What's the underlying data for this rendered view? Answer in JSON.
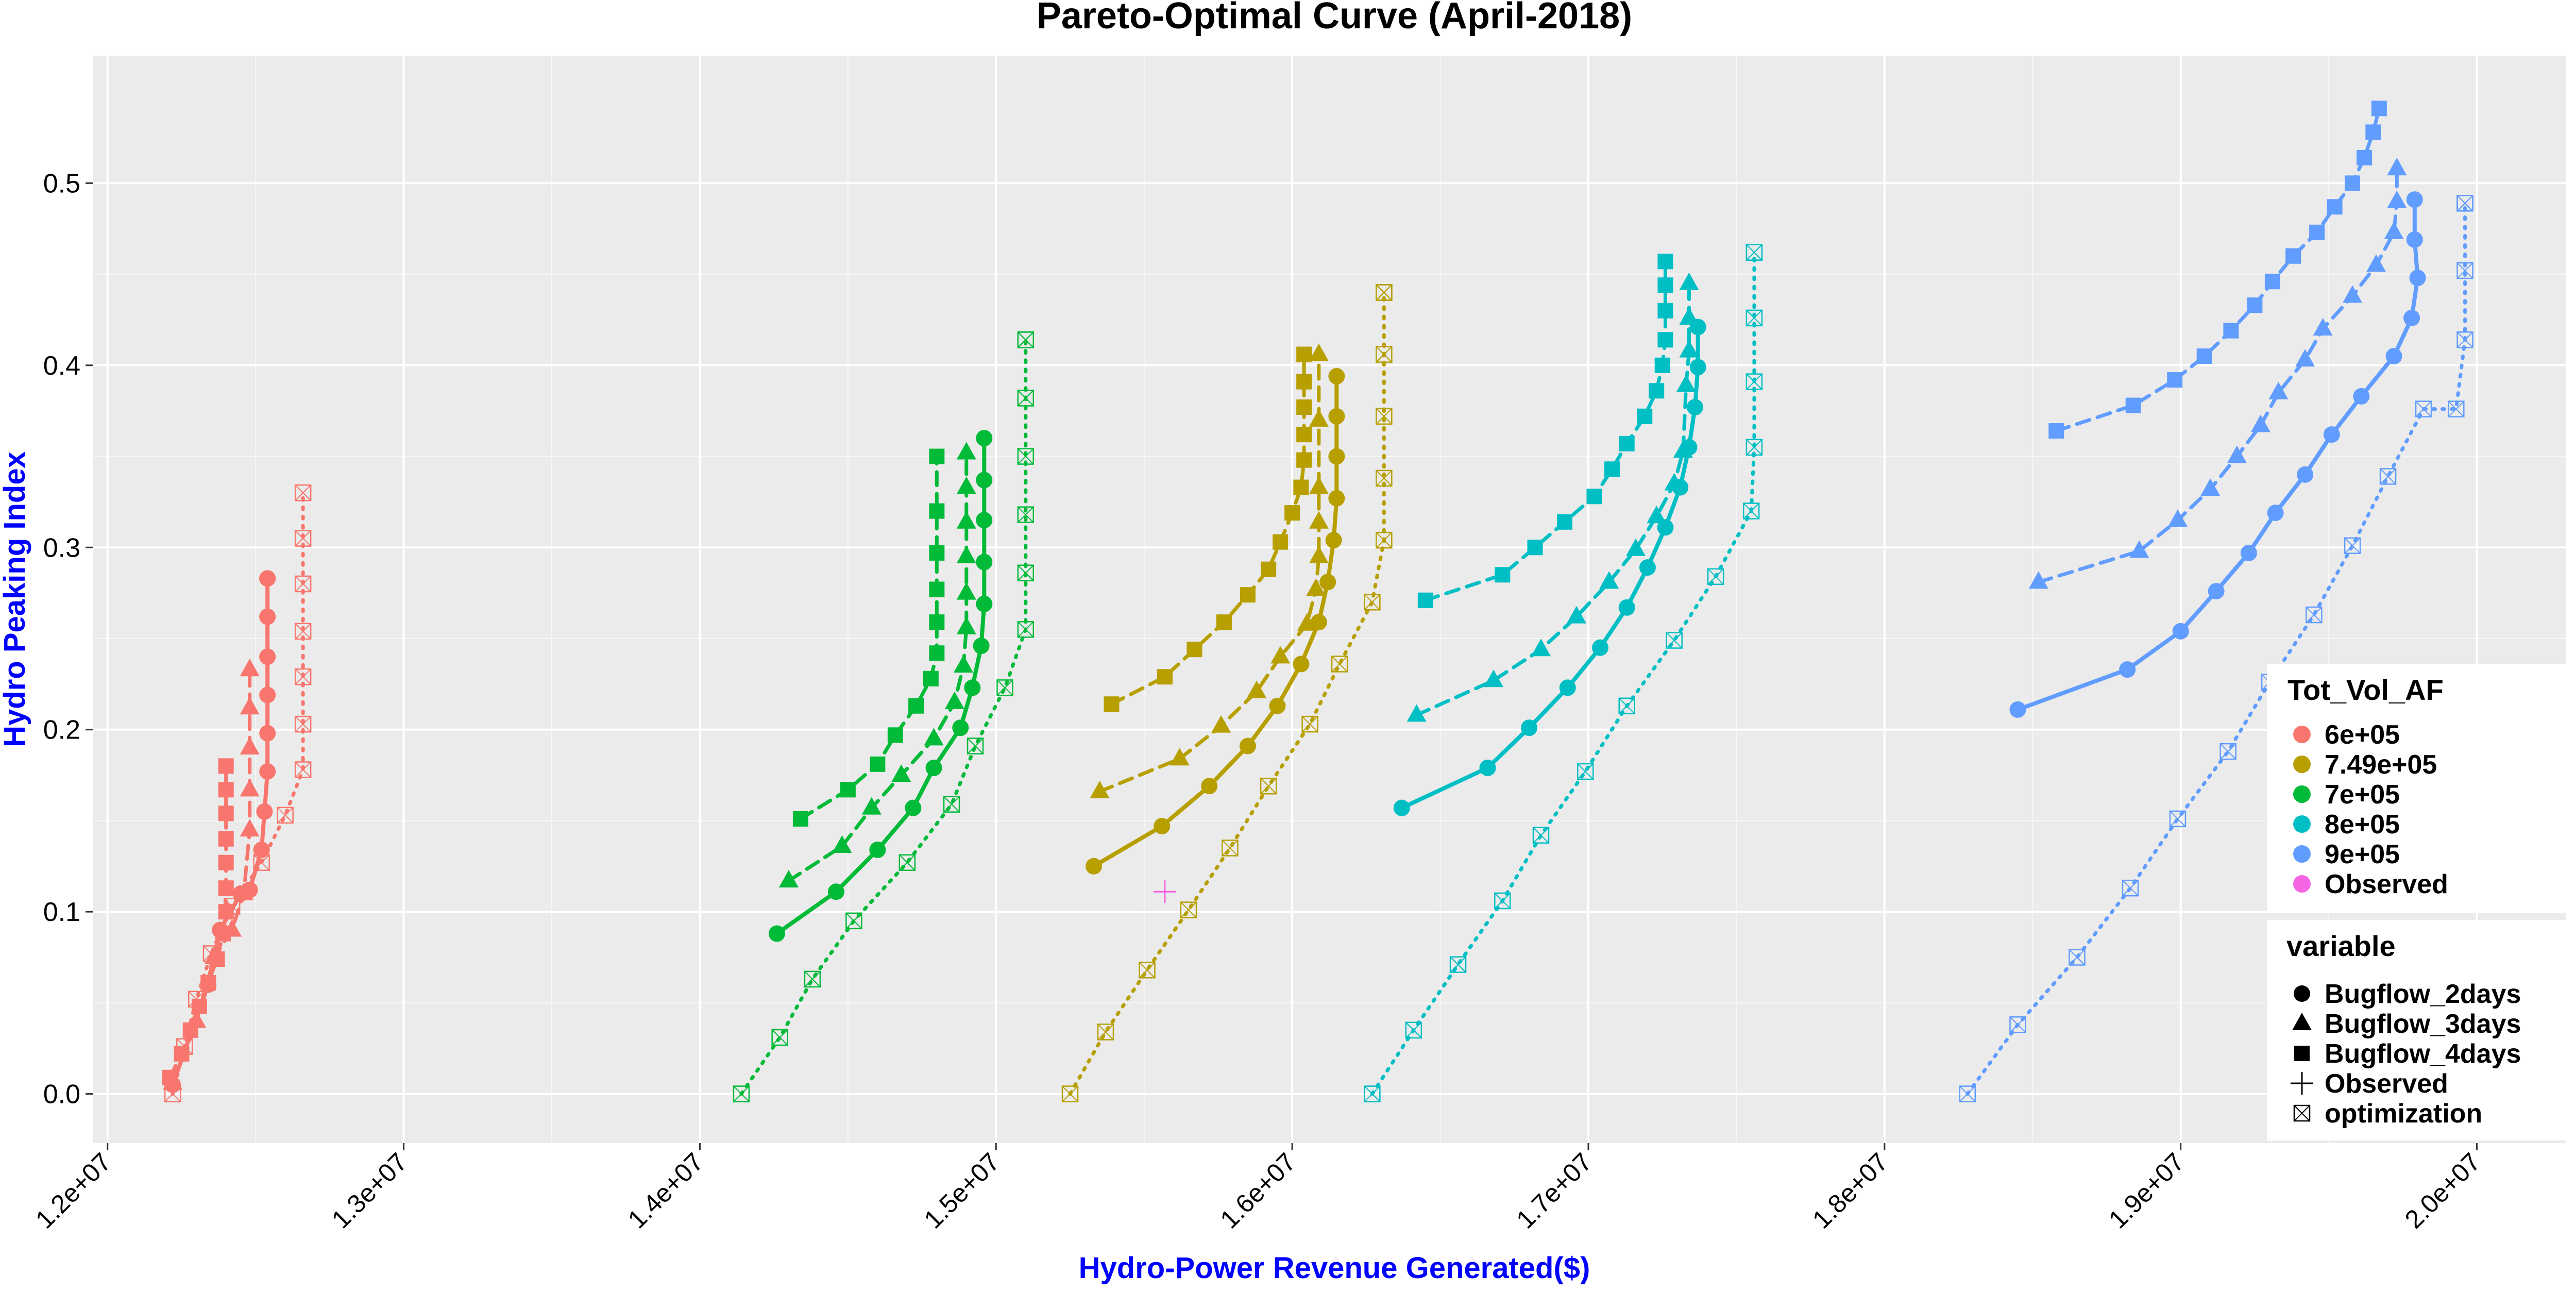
{
  "chart_data": {
    "type": "line",
    "title": "Pareto-Optimal Curve (April-2018)",
    "xlabel": "Hydro-Power Revenue Generated($)",
    "ylabel": "Hydro Peaking Index",
    "xlim": [
      11950000,
      20300000
    ],
    "ylim": [
      -0.027,
      0.57
    ],
    "x_ticks": [
      12000000,
      13000000,
      14000000,
      15000000,
      16000000,
      17000000,
      18000000,
      19000000,
      20000000
    ],
    "x_tick_labels": [
      "1.2e+07",
      "1.3e+07",
      "1.4e+07",
      "1.5e+07",
      "1.6e+07",
      "1.7e+07",
      "1.8e+07",
      "1.9e+07",
      "2.0e+07"
    ],
    "y_ticks": [
      0.0,
      0.1,
      0.2,
      0.3,
      0.4,
      0.5
    ],
    "y_tick_labels": [
      "0.0",
      "0.1",
      "0.2",
      "0.3",
      "0.4",
      "0.5"
    ],
    "grid": true,
    "legend_placement": "right",
    "legend_color": {
      "title": "Tot_Vol_AF",
      "entries": [
        {
          "label": "6e+05",
          "color": "#F8766D"
        },
        {
          "label": "7.49e+05",
          "color": "#B79F00"
        },
        {
          "label": "7e+05",
          "color": "#00BA38"
        },
        {
          "label": "8e+05",
          "color": "#00BFC4"
        },
        {
          "label": "9e+05",
          "color": "#619CFF"
        },
        {
          "label": "Observed",
          "color": "#F564E3"
        }
      ]
    },
    "legend_shape": {
      "title": "variable",
      "entries": [
        {
          "label": "Bugflow_2days",
          "shape": "circle"
        },
        {
          "label": "Bugflow_3days",
          "shape": "triangle"
        },
        {
          "label": "Bugflow_4days",
          "shape": "square"
        },
        {
          "label": "Observed",
          "shape": "plus"
        },
        {
          "label": "optimization",
          "shape": "boxx"
        }
      ]
    },
    "series": [
      {
        "color": "#F8766D",
        "shape": "circle",
        "linetype": "solid",
        "x": [
          12220000,
          12340000,
          12380000,
          12450000,
          12480000,
          12520000,
          12530000,
          12540000,
          12540000,
          12540000,
          12540000,
          12540000,
          12540000,
          12540000,
          12540000
        ],
        "y": [
          0.005,
          0.06,
          0.09,
          0.11,
          0.112,
          0.134,
          0.155,
          0.177,
          0.198,
          0.219,
          0.24,
          0.262,
          0.283,
          0.283,
          0.283
        ]
      },
      {
        "color": "#F8766D",
        "shape": "triangle",
        "linetype": "dashed",
        "x": [
          12220000,
          12300000,
          12360000,
          12420000,
          12460000,
          12480000,
          12480000,
          12480000,
          12480000,
          12480000,
          12480000
        ],
        "y": [
          0.006,
          0.04,
          0.075,
          0.09,
          0.11,
          0.145,
          0.167,
          0.19,
          0.212,
          0.233,
          0.233
        ]
      },
      {
        "color": "#F8766D",
        "shape": "square",
        "linetype": "dashed",
        "x": [
          12210000,
          12250000,
          12280000,
          12310000,
          12340000,
          12370000,
          12390000,
          12400000,
          12400000,
          12400000,
          12400000,
          12400000,
          12400000,
          12400000
        ],
        "y": [
          0.009,
          0.022,
          0.035,
          0.048,
          0.061,
          0.074,
          0.088,
          0.1,
          0.113,
          0.127,
          0.14,
          0.154,
          0.167,
          0.18
        ]
      },
      {
        "color": "#F8766D",
        "shape": "boxx",
        "linetype": "dotted",
        "x": [
          12220000,
          12260000,
          12300000,
          12350000,
          12420000,
          12520000,
          12600000,
          12660000,
          12660000,
          12660000,
          12660000,
          12660000,
          12660000,
          12660000
        ],
        "y": [
          0.0,
          0.026,
          0.052,
          0.077,
          0.103,
          0.127,
          0.153,
          0.178,
          0.203,
          0.229,
          0.254,
          0.28,
          0.305,
          0.33
        ]
      },
      {
        "color": "#00BA38",
        "shape": "circle",
        "linetype": "solid",
        "x": [
          14260000,
          14460000,
          14600000,
          14720000,
          14790000,
          14880000,
          14920000,
          14950000,
          14960000,
          14960000,
          14960000,
          14960000,
          14960000
        ],
        "y": [
          0.088,
          0.111,
          0.134,
          0.157,
          0.179,
          0.201,
          0.223,
          0.246,
          0.269,
          0.292,
          0.315,
          0.337,
          0.36
        ]
      },
      {
        "color": "#00BA38",
        "shape": "triangle",
        "linetype": "dashed",
        "x": [
          14300000,
          14480000,
          14580000,
          14680000,
          14790000,
          14860000,
          14890000,
          14900000,
          14900000,
          14900000,
          14900000,
          14900000,
          14900000
        ],
        "y": [
          0.117,
          0.136,
          0.157,
          0.175,
          0.195,
          0.215,
          0.235,
          0.256,
          0.275,
          0.295,
          0.314,
          0.333,
          0.352
        ]
      },
      {
        "color": "#00BA38",
        "shape": "square",
        "linetype": "dashed",
        "x": [
          14340000,
          14500000,
          14600000,
          14660000,
          14730000,
          14780000,
          14800000,
          14800000,
          14800000,
          14800000,
          14800000,
          14800000
        ],
        "y": [
          0.151,
          0.167,
          0.181,
          0.197,
          0.213,
          0.228,
          0.242,
          0.259,
          0.277,
          0.297,
          0.32,
          0.35
        ]
      },
      {
        "color": "#00BA38",
        "shape": "boxx",
        "linetype": "dotted",
        "x": [
          14140000,
          14270000,
          14380000,
          14520000,
          14700000,
          14850000,
          14930000,
          15030000,
          15100000,
          15100000,
          15100000,
          15100000,
          15100000,
          15100000,
          15100000
        ],
        "y": [
          0.0,
          0.031,
          0.063,
          0.095,
          0.127,
          0.159,
          0.191,
          0.223,
          0.255,
          0.286,
          0.318,
          0.35,
          0.382,
          0.414,
          0.414
        ]
      },
      {
        "color": "#B79F00",
        "shape": "circle",
        "linetype": "solid",
        "x": [
          15330000,
          15560000,
          15720000,
          15850000,
          15950000,
          16030000,
          16090000,
          16120000,
          16140000,
          16150000,
          16150000,
          16150000,
          16150000
        ],
        "y": [
          0.125,
          0.147,
          0.169,
          0.191,
          0.213,
          0.236,
          0.259,
          0.281,
          0.304,
          0.327,
          0.35,
          0.372,
          0.394
        ]
      },
      {
        "color": "#B79F00",
        "shape": "triangle",
        "linetype": "dashed",
        "x": [
          15350000,
          15620000,
          15760000,
          15880000,
          15960000,
          16050000,
          16080000,
          16090000,
          16090000,
          16090000,
          16090000,
          16090000
        ],
        "y": [
          0.166,
          0.184,
          0.202,
          0.221,
          0.24,
          0.258,
          0.277,
          0.295,
          0.314,
          0.333,
          0.37,
          0.406
        ]
      },
      {
        "color": "#B79F00",
        "shape": "square",
        "linetype": "dashed",
        "x": [
          15390000,
          15570000,
          15670000,
          15770000,
          15850000,
          15920000,
          15960000,
          16000000,
          16030000,
          16040000,
          16040000,
          16040000,
          16040000,
          16040000
        ],
        "y": [
          0.214,
          0.229,
          0.244,
          0.259,
          0.274,
          0.288,
          0.303,
          0.319,
          0.333,
          0.348,
          0.362,
          0.377,
          0.391,
          0.406
        ]
      },
      {
        "color": "#B79F00",
        "shape": "boxx",
        "linetype": "dotted",
        "x": [
          15250000,
          15370000,
          15510000,
          15650000,
          15790000,
          15920000,
          16060000,
          16160000,
          16270000,
          16310000,
          16310000,
          16310000,
          16310000,
          16310000,
          16310000,
          16310000
        ],
        "y": [
          0.0,
          0.034,
          0.068,
          0.101,
          0.135,
          0.169,
          0.203,
          0.236,
          0.27,
          0.304,
          0.338,
          0.372,
          0.406,
          0.44,
          0.44,
          0.44
        ]
      },
      {
        "color": "#00BFC4",
        "shape": "circle",
        "linetype": "solid",
        "x": [
          16370000,
          16660000,
          16800000,
          16930000,
          17040000,
          17130000,
          17200000,
          17260000,
          17310000,
          17340000,
          17360000,
          17370000,
          17370000
        ],
        "y": [
          0.157,
          0.179,
          0.201,
          0.223,
          0.245,
          0.267,
          0.289,
          0.311,
          0.333,
          0.355,
          0.377,
          0.399,
          0.421
        ]
      },
      {
        "color": "#00BFC4",
        "shape": "triangle",
        "linetype": "dashed",
        "x": [
          16420000,
          16680000,
          16840000,
          16960000,
          17070000,
          17160000,
          17230000,
          17290000,
          17320000,
          17330000,
          17340000,
          17340000,
          17340000
        ],
        "y": [
          0.208,
          0.227,
          0.244,
          0.262,
          0.281,
          0.299,
          0.317,
          0.335,
          0.353,
          0.389,
          0.408,
          0.426,
          0.445
        ]
      },
      {
        "color": "#00BFC4",
        "shape": "square",
        "linetype": "dashed",
        "x": [
          16450000,
          16710000,
          16820000,
          16920000,
          17020000,
          17080000,
          17130000,
          17190000,
          17230000,
          17250000,
          17260000,
          17260000,
          17260000,
          17260000
        ],
        "y": [
          0.271,
          0.285,
          0.3,
          0.314,
          0.328,
          0.343,
          0.357,
          0.372,
          0.386,
          0.4,
          0.414,
          0.43,
          0.444,
          0.457
        ]
      },
      {
        "color": "#00BFC4",
        "shape": "boxx",
        "linetype": "dotted",
        "x": [
          16270000,
          16410000,
          16560000,
          16710000,
          16840000,
          16990000,
          17130000,
          17290000,
          17430000,
          17550000,
          17560000,
          17560000,
          17560000,
          17560000,
          17560000
        ],
        "y": [
          0.0,
          0.035,
          0.071,
          0.106,
          0.142,
          0.177,
          0.213,
          0.249,
          0.284,
          0.32,
          0.355,
          0.391,
          0.426,
          0.462,
          0.462
        ]
      },
      {
        "color": "#619CFF",
        "shape": "circle",
        "linetype": "solid",
        "x": [
          18450000,
          18820000,
          19000000,
          19120000,
          19230000,
          19320000,
          19420000,
          19510000,
          19610000,
          19720000,
          19780000,
          19800000,
          19790000,
          19790000
        ],
        "y": [
          0.211,
          0.233,
          0.254,
          0.276,
          0.297,
          0.319,
          0.34,
          0.362,
          0.383,
          0.405,
          0.426,
          0.448,
          0.469,
          0.491
        ]
      },
      {
        "color": "#619CFF",
        "shape": "triangle",
        "linetype": "dashed",
        "x": [
          18520000,
          18860000,
          18990000,
          19100000,
          19190000,
          19270000,
          19330000,
          19420000,
          19480000,
          19580000,
          19660000,
          19720000,
          19730000,
          19730000,
          19730000
        ],
        "y": [
          0.281,
          0.298,
          0.315,
          0.332,
          0.35,
          0.367,
          0.385,
          0.403,
          0.42,
          0.438,
          0.455,
          0.473,
          0.49,
          0.508,
          0.508
        ]
      },
      {
        "color": "#619CFF",
        "shape": "square",
        "linetype": "dashed",
        "x": [
          18580000,
          18840000,
          18980000,
          19080000,
          19170000,
          19250000,
          19310000,
          19380000,
          19460000,
          19520000,
          19580000,
          19620000,
          19650000,
          19670000
        ],
        "y": [
          0.364,
          0.378,
          0.392,
          0.405,
          0.419,
          0.433,
          0.446,
          0.46,
          0.473,
          0.487,
          0.5,
          0.514,
          0.528,
          0.541
        ]
      },
      {
        "color": "#619CFF",
        "shape": "boxx",
        "linetype": "dotted",
        "x": [
          18280000,
          18450000,
          18650000,
          18830000,
          18990000,
          19160000,
          19300000,
          19450000,
          19580000,
          19700000,
          19820000,
          19930000,
          19960000,
          19960000,
          19960000,
          19960000,
          19960000
        ],
        "y": [
          0.0,
          0.038,
          0.075,
          0.113,
          0.151,
          0.188,
          0.226,
          0.263,
          0.301,
          0.339,
          0.376,
          0.376,
          0.414,
          0.452,
          0.489,
          0.489,
          0.489
        ]
      }
    ],
    "observed_point": {
      "x": 15570000,
      "y": 0.111,
      "color": "#F564E3",
      "shape": "plus"
    }
  }
}
